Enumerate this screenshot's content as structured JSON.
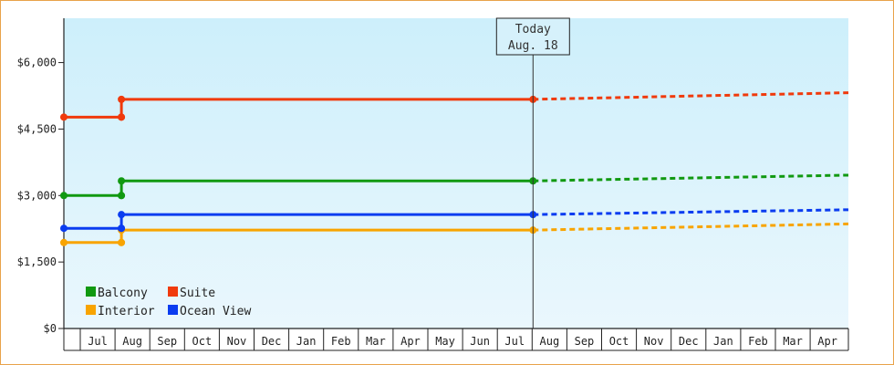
{
  "chart_data": {
    "type": "line",
    "step": true,
    "x_unit": "month",
    "x_ticks": [
      "Jul",
      "Aug",
      "Sep",
      "Oct",
      "Nov",
      "Dec",
      "Jan",
      "Feb",
      "Mar",
      "Apr",
      "May",
      "Jun",
      "Jul",
      "Aug",
      "Sep",
      "Oct",
      "Nov",
      "Dec",
      "Jan",
      "Feb",
      "Mar",
      "Apr"
    ],
    "x_range": [
      "Jun",
      "Apr"
    ],
    "ylim": [
      0,
      7000
    ],
    "y_ticks": [
      "$0",
      "$1,500",
      "$3,000",
      "$4,500",
      "$6,000"
    ],
    "y_tick_values": [
      0,
      1500,
      3000,
      4500,
      6000
    ],
    "grid": false,
    "background": [
      "#cdeffb",
      "#eaf7fd"
    ],
    "today": {
      "label": "Today",
      "date": "Aug. 18",
      "x": "Aug"
    },
    "legend": {
      "placement": "bottom-left"
    },
    "series": [
      {
        "name": "Balcony",
        "color": "#119911",
        "actual": [
          [
            "Jun",
            3000
          ],
          [
            "Jul",
            3000
          ],
          [
            "Aug",
            3330
          ],
          [
            "Aug (Today)",
            3330
          ]
        ],
        "forecast": [
          [
            "Aug (Today)",
            3330
          ],
          [
            "Apr",
            3460
          ]
        ]
      },
      {
        "name": "Suite",
        "color": "#f03a0c",
        "actual": [
          [
            "Jun",
            4770
          ],
          [
            "Jul",
            4770
          ],
          [
            "Aug",
            5170
          ],
          [
            "Aug (Today)",
            5170
          ]
        ],
        "forecast": [
          [
            "Aug (Today)",
            5170
          ],
          [
            "Apr",
            5320
          ]
        ]
      },
      {
        "name": "Interior",
        "color": "#f8a400",
        "actual": [
          [
            "Jun",
            1940
          ],
          [
            "Jul",
            1940
          ],
          [
            "Aug",
            2220
          ],
          [
            "Aug (Today)",
            2220
          ]
        ],
        "forecast": [
          [
            "Aug (Today)",
            2220
          ],
          [
            "Apr",
            2360
          ]
        ]
      },
      {
        "name": "Ocean View",
        "color": "#0a3cf0",
        "actual": [
          [
            "Jun",
            2260
          ],
          [
            "Jul",
            2260
          ],
          [
            "Aug",
            2570
          ],
          [
            "Aug (Today)",
            2570
          ]
        ],
        "forecast": [
          [
            "Aug (Today)",
            2570
          ],
          [
            "Apr",
            2680
          ]
        ]
      }
    ]
  }
}
